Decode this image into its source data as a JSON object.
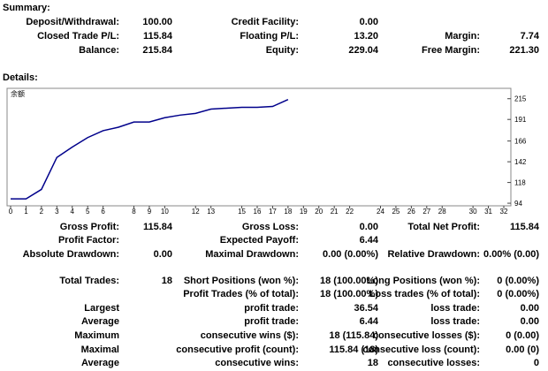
{
  "summary": {
    "title": "Summary:",
    "rows": [
      [
        {
          "label": "Deposit/Withdrawal:",
          "value": "100.00"
        },
        {
          "label": "Credit Facility:",
          "value": "0.00"
        },
        null
      ],
      [
        {
          "label": "Closed Trade P/L:",
          "value": "115.84"
        },
        {
          "label": "Floating P/L:",
          "value": "13.20"
        },
        {
          "label": "Margin:",
          "value": "7.74"
        }
      ],
      [
        {
          "label": "Balance:",
          "value": "215.84"
        },
        {
          "label": "Equity:",
          "value": "229.04"
        },
        {
          "label": "Free Margin:",
          "value": "221.30"
        }
      ]
    ]
  },
  "details": {
    "title": "Details:",
    "chart_data": {
      "type": "line",
      "series": [
        {
          "name": "余额",
          "color": "#00008b",
          "x": [
            0,
            1,
            2,
            3,
            4,
            5,
            6,
            7,
            8,
            9,
            10,
            11,
            12,
            13,
            14,
            15,
            16,
            17,
            18
          ],
          "values": [
            99,
            99,
            110,
            147,
            159,
            170,
            178,
            182,
            188,
            188,
            193,
            196,
            198,
            203,
            204,
            205,
            205,
            206,
            214
          ]
        }
      ],
      "xlim": [
        0,
        32
      ],
      "xticks": [
        0,
        1,
        2,
        3,
        4,
        5,
        6,
        8,
        9,
        10,
        12,
        13,
        15,
        16,
        17,
        18,
        19,
        20,
        21,
        22,
        24,
        25,
        26,
        27,
        28,
        30,
        31,
        32
      ],
      "ylim": [
        91,
        227
      ],
      "yticks": [
        94,
        118,
        142,
        166,
        191,
        215
      ]
    },
    "stats": [
      [
        {
          "label": "Gross Profit:",
          "value": "115.84"
        },
        {
          "label": "Gross Loss:",
          "value": "0.00"
        },
        {
          "label": "Total Net Profit:",
          "value": "115.84"
        }
      ],
      [
        {
          "label": "Profit Factor:"
        },
        {
          "label": "Expected Payoff:",
          "value": "6.44"
        },
        null
      ],
      [
        {
          "label": "Absolute Drawdown:",
          "value": "0.00"
        },
        {
          "label": "Maximal Drawdown:",
          "value": "0.00 (0.00%)"
        },
        {
          "label": "Relative Drawdown:",
          "value": "0.00% (0.00)"
        }
      ],
      [
        {
          "label": "Total Trades:",
          "value": "18"
        },
        {
          "label": "Short Positions (won %):",
          "value": "18 (100.00%)"
        },
        {
          "label": "Long Positions (won %):",
          "value": "0 (0.00%)"
        }
      ],
      [
        null,
        {
          "label": "Profit Trades (% of total):",
          "value": "18 (100.00%)"
        },
        {
          "label": "Loss trades (% of total):",
          "value": "0 (0.00%)"
        }
      ],
      [
        {
          "label": "Largest"
        },
        {
          "label": "profit trade:",
          "value": "36.54"
        },
        {
          "label": "loss trade:",
          "value": "0.00"
        }
      ],
      [
        {
          "label": "Average"
        },
        {
          "label": "profit trade:",
          "value": "6.44"
        },
        {
          "label": "loss trade:",
          "value": "0.00"
        }
      ],
      [
        {
          "label": "Maximum"
        },
        {
          "label": "consecutive wins ($):",
          "value": "18 (115.84)"
        },
        {
          "label": "consecutive losses ($):",
          "value": "0 (0.00)"
        }
      ],
      [
        {
          "label": "Maximal"
        },
        {
          "label": "consecutive profit (count):",
          "value": "115.84 (18)"
        },
        {
          "label": "consecutive loss (count):",
          "value": "0.00 (0)"
        }
      ],
      [
        {
          "label": "Average"
        },
        {
          "label": "consecutive wins:",
          "value": "18"
        },
        {
          "label": "consecutive losses:",
          "value": "0"
        }
      ]
    ]
  }
}
